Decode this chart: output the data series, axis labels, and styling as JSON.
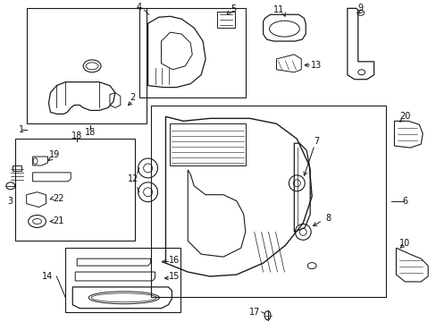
{
  "bg_color": "#ffffff",
  "fig_width": 4.89,
  "fig_height": 3.6,
  "dpi": 100,
  "line_color": "#1a1a1a",
  "text_color": "#111111",
  "font_size": 7.0
}
